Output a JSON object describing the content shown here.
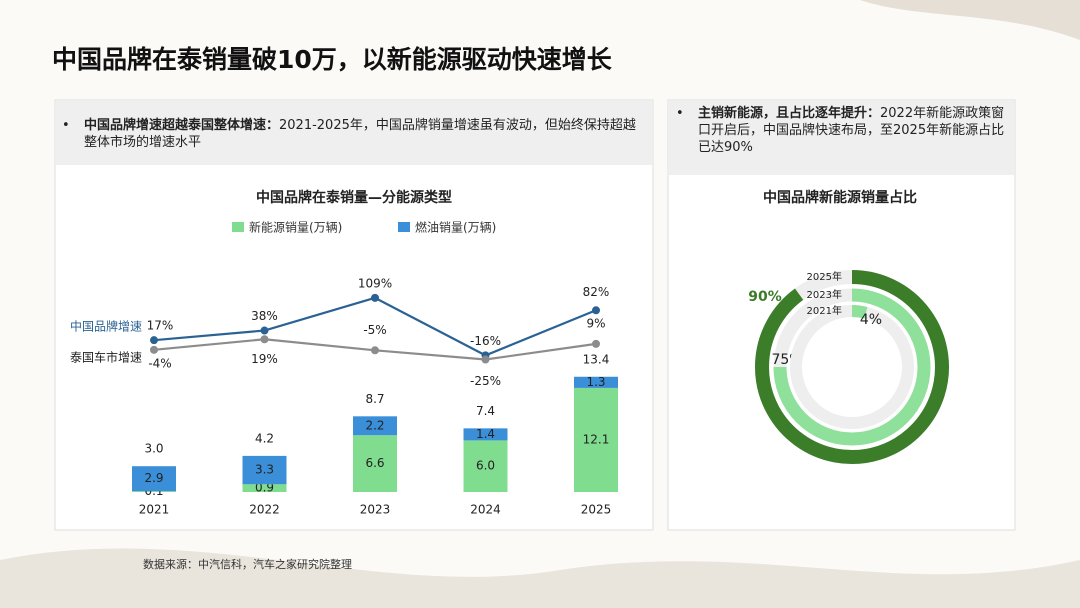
{
  "title": "中国品牌在泰销量破10万，以新能源驱动快速增长",
  "notes": [
    {
      "heading": "中国品牌增速超越泰国整体增速：",
      "text": "2021-2025年，中国品牌销量增速虽有波动，但始终保持超越整体市场的增速水平"
    },
    {
      "heading": "主销新能源，且占比逐年提升：",
      "text": "2022年新能源政策窗口开启后，中国品牌快速布局，至2025年新能源占比已达90%"
    }
  ],
  "source": "数据来源：中汽信科，汽车之家研究院整理",
  "chart_data": [
    {
      "type": "combo",
      "stacked": true,
      "title": "中国品牌在泰销量—分能源类型",
      "categories": [
        "2021",
        "2022",
        "2023",
        "2024",
        "2025"
      ],
      "series": [
        {
          "name": "新能源销量(万辆)",
          "type": "bar",
          "color": "#80dc8e",
          "values": [
            0.1,
            0.9,
            6.6,
            6.0,
            12.1
          ],
          "value_labels": [
            "0.1",
            "0.9",
            "6.6",
            "6.0",
            "12.1"
          ]
        },
        {
          "name": "燃油销量(万辆)",
          "type": "bar",
          "color": "#3a8fd8",
          "values": [
            2.9,
            3.3,
            2.2,
            1.4,
            1.3
          ],
          "value_labels": [
            "2.9",
            "3.3",
            "2.2",
            "1.4",
            "1.3"
          ]
        },
        {
          "name": "中国品牌增速",
          "type": "line",
          "color": "#2b6294",
          "values": [
            17,
            38,
            109,
            -16,
            82
          ],
          "value_labels": [
            "17%",
            "38%",
            "109%",
            "-16%",
            "82%"
          ]
        },
        {
          "name": "泰国车市增速",
          "type": "line",
          "color": "#8c8c8c",
          "values": [
            -4,
            19,
            -5,
            -25,
            9
          ],
          "value_labels": [
            "-4%",
            "19%",
            "-5%",
            "-25%",
            "9%"
          ]
        }
      ],
      "totals": {
        "values": [
          3,
          4.2,
          8.7,
          7.4,
          13.4
        ],
        "value_labels": [
          "3.0",
          "4.2",
          "8.7",
          "7.4",
          "13.4"
        ]
      }
    },
    {
      "type": "radial",
      "title": "中国品牌新能源销量占比",
      "categories": [
        "2025年",
        "2023年",
        "2021年"
      ],
      "values": [
        90,
        75,
        4
      ],
      "value_labels": [
        "90%",
        "75%",
        "4%"
      ],
      "colors": [
        "#3c7d2a",
        "#8fe09a",
        "#8fe09a"
      ]
    }
  ]
}
